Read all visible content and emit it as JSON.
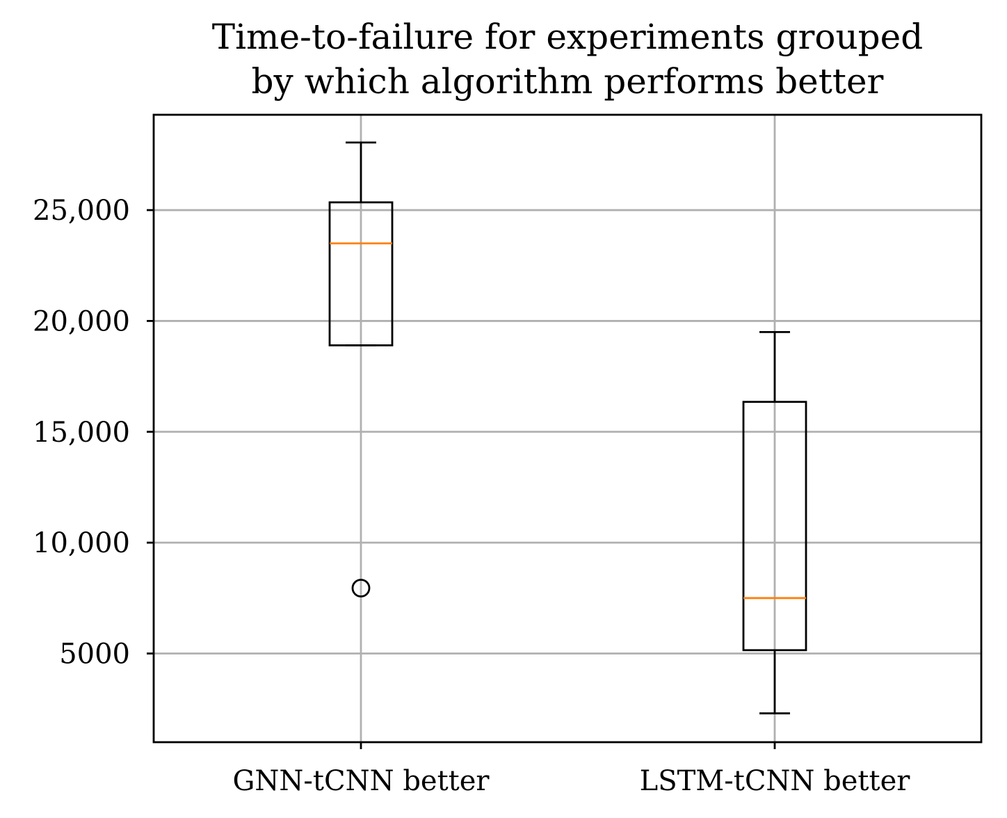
{
  "chart_data": {
    "type": "boxplot",
    "title": "Time-to-failure for experiments grouped\nby which algorithm performs better",
    "title_lines": [
      "Time-to-failure for experiments grouped",
      "by which algorithm performs better"
    ],
    "xlabel": "",
    "ylabel": "",
    "ylim": [
      1000,
      29300
    ],
    "grid": true,
    "categories": [
      "GNN-tCNN better",
      "LSTM-tCNN better"
    ],
    "y_ticks": [
      5000,
      10000,
      15000,
      20000,
      25000
    ],
    "y_tick_labels": [
      "5000",
      "10,000",
      "15,000",
      "20,000",
      "25,000"
    ],
    "series": [
      {
        "name": "GNN-tCNN better",
        "whisker_low": 18900,
        "q1": 18900,
        "median": 23500,
        "q3": 25350,
        "whisker_high": 28050,
        "fliers": [
          7950
        ]
      },
      {
        "name": "LSTM-tCNN better",
        "whisker_low": 2300,
        "q1": 5150,
        "median": 7500,
        "q3": 16350,
        "whisker_high": 19500,
        "fliers": []
      }
    ],
    "colors": {
      "box": "#000000",
      "median": "#ff7f0e",
      "grid": "#b0b0b0",
      "frame": "#000000"
    }
  }
}
